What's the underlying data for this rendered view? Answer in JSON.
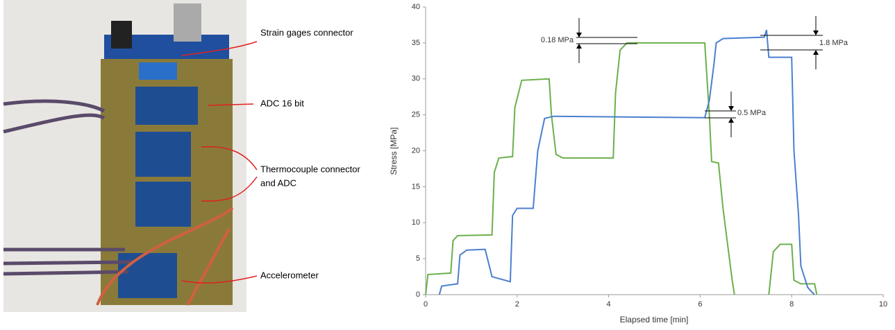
{
  "photo": {
    "labels": [
      "Strain gages connector",
      "ADC 16 bit",
      "Thermocouple connector",
      "and ADC",
      "Accelerometer"
    ]
  },
  "chart_data": {
    "type": "line",
    "xlabel": "Elapsed time [min]",
    "ylabel": "Stress [MPa]",
    "xlim": [
      0,
      10
    ],
    "xticks": [
      0,
      2,
      4,
      6,
      8,
      10
    ],
    "ylim": [
      0,
      40
    ],
    "yticks": [
      0,
      5,
      10,
      15,
      20,
      25,
      30,
      35,
      40
    ],
    "annotations": [
      "0.18 MPa",
      "1.8 MPa",
      "0.5 MPa"
    ],
    "series": [
      {
        "color": "#6ab04c",
        "x": [
          0,
          0.05,
          0.55,
          0.6,
          0.7,
          1.45,
          1.5,
          1.6,
          1.9,
          1.95,
          2.1,
          2.7,
          2.75,
          2.85,
          3,
          4.1,
          4.15,
          4.25,
          4.4,
          6.1,
          6.2,
          6.25,
          6.4,
          6.5,
          6.7,
          6.75,
          7.1,
          7.5,
          7.6,
          7.75,
          8.0,
          8.05,
          8.2,
          8.5,
          8.55
        ],
        "values": [
          0,
          2.8,
          3,
          7.5,
          8.2,
          8.3,
          17,
          19,
          19.2,
          26,
          29.8,
          30,
          25,
          19.5,
          19,
          19,
          28,
          34,
          35,
          35,
          25,
          18.5,
          18.3,
          12,
          2,
          0,
          null,
          0,
          6,
          7,
          7,
          2,
          1.5,
          1.5,
          0
        ]
      },
      {
        "color": "#4a7fcf",
        "x": [
          0.3,
          0.35,
          0.7,
          0.75,
          0.9,
          1.3,
          1.45,
          1.85,
          1.9,
          2.0,
          2.35,
          2.45,
          2.6,
          2.8,
          6.1,
          6.2,
          6.3,
          6.35,
          6.5,
          7.4,
          7.45,
          7.5,
          8.0,
          8.05,
          8.15,
          8.2,
          8.35,
          8.45,
          8.5
        ],
        "values": [
          0,
          1.2,
          1.5,
          5.5,
          6.2,
          6.3,
          2.5,
          1.8,
          11,
          12,
          12,
          20,
          24.5,
          24.8,
          24.6,
          27,
          32,
          35,
          35.6,
          35.8,
          36.8,
          33,
          33,
          20,
          11,
          4,
          1,
          0.3,
          0
        ]
      }
    ]
  }
}
